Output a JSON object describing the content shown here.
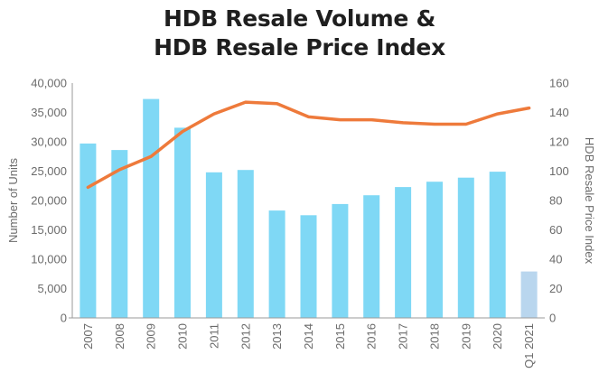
{
  "title_line1": "HDB Resale Volume &",
  "title_line2": "HDB Resale Price Index",
  "chart_data": {
    "type": "bar+line",
    "title": "HDB Resale Volume & HDB Resale Price Index",
    "categories": [
      "2007",
      "2008",
      "2009",
      "2010",
      "2011",
      "2012",
      "2013",
      "2014",
      "2015",
      "2016",
      "2017",
      "2018",
      "2019",
      "2020",
      "Q1 2021"
    ],
    "series": [
      {
        "name": "",
        "type": "bar",
        "axis": "left",
        "color": "#7fd8f5",
        "last_color": "#b9d6ee",
        "values": [
          29700,
          28600,
          37300,
          32400,
          24800,
          25200,
          18300,
          17500,
          19400,
          20900,
          22300,
          23200,
          23900,
          24900,
          7900
        ]
      },
      {
        "name": "",
        "type": "line",
        "axis": "right",
        "color": "#ee7a3b",
        "values": [
          89,
          101,
          110,
          127,
          139,
          147,
          146,
          137,
          135,
          135,
          133,
          132,
          132,
          139,
          143
        ]
      }
    ],
    "ylabel": "Number of Units",
    "y2label": "HDB Resale Price Index",
    "ylim": [
      0,
      40000
    ],
    "y2lim": [
      0,
      160
    ],
    "yticks": [
      "0",
      "5,000",
      "10,000",
      "15,000",
      "20,000",
      "25,000",
      "30,000",
      "35,000",
      "40,000"
    ],
    "y2ticks": [
      "0",
      "20",
      "40",
      "60",
      "80",
      "100",
      "120",
      "140",
      "160"
    ],
    "grid": false,
    "legend": "none"
  }
}
